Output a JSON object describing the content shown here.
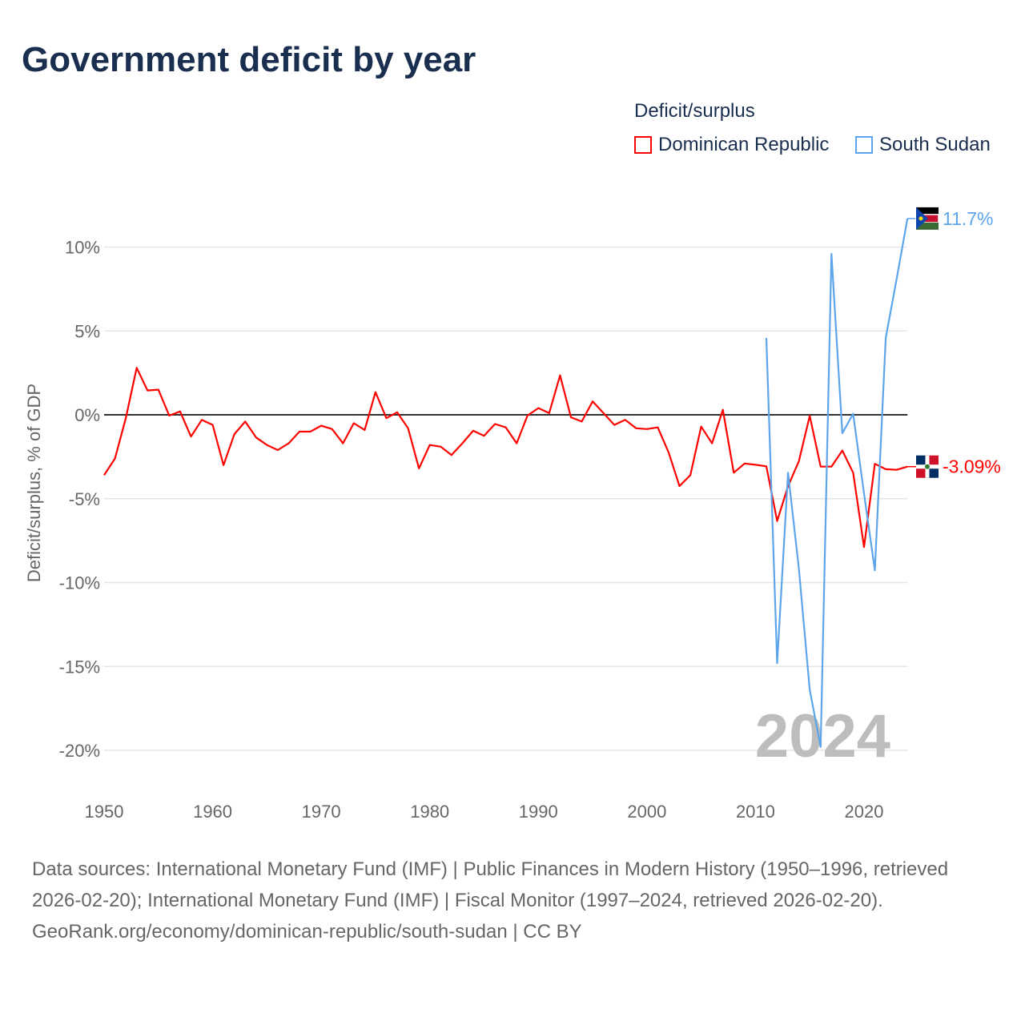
{
  "title": "Government deficit by year",
  "legend_title": "Deficit/surplus",
  "footer": {
    "sources": "Data sources: International Monetary Fund (IMF) | Public Finances in Modern History (1950–1996, retrieved 2026-02-20); International Monetary Fund (IMF) | Fiscal Monitor (1997–2024, retrieved 2026-02-20).",
    "credit": "GeoRank.org/economy/dominican-republic/south-sudan | CC BY"
  },
  "chart_data": {
    "type": "line",
    "title": "Government deficit by year",
    "xlabel": "",
    "ylabel": "Deficit/surplus, % of GDP",
    "xlim": [
      1950,
      2024
    ],
    "ylim": [
      -20,
      11.7
    ],
    "x_ticks": [
      1950,
      1960,
      1970,
      1980,
      1990,
      2000,
      2010,
      2020
    ],
    "x_tick_labels": [
      "1950",
      "1960",
      "1970",
      "1980",
      "1990",
      "2000",
      "2010",
      "2020"
    ],
    "y_ticks": [
      10,
      5,
      0,
      -5,
      -10,
      -15,
      -20
    ],
    "y_tick_labels": [
      "10%",
      "5%",
      "0%",
      "-5%",
      "-10%",
      "-15%",
      "-20%"
    ],
    "grid": true,
    "legend_position": "top-right",
    "year_watermark": "2024",
    "series": [
      {
        "name": "Dominican Republic",
        "color": "#ff0000",
        "end_label": "-3.09%",
        "start_year": 1950,
        "values": [
          -3.6,
          -2.6,
          -0.2,
          2.8,
          1.45,
          1.5,
          -0.05,
          0.2,
          -1.3,
          -0.3,
          -0.6,
          -3.0,
          -1.15,
          -0.4,
          -1.35,
          -1.8,
          -2.1,
          -1.7,
          -1.0,
          -1.0,
          -0.65,
          -0.85,
          -1.7,
          -0.5,
          -0.9,
          1.35,
          -0.2,
          0.15,
          -0.8,
          -3.2,
          -1.8,
          -1.9,
          -2.4,
          -1.7,
          -0.95,
          -1.25,
          -0.55,
          -0.75,
          -1.7,
          -0.05,
          0.4,
          0.1,
          2.35,
          -0.15,
          -0.4,
          0.8,
          0.1,
          -0.6,
          -0.3,
          -0.8,
          -0.85,
          -0.75,
          -2.25,
          -4.25,
          -3.6,
          -0.7,
          -1.7,
          0.3,
          -3.45,
          -2.9,
          -2.98,
          -3.07,
          -6.33,
          -4.26,
          -2.77,
          -0.06,
          -3.09,
          -3.09,
          -2.13,
          -3.45,
          -7.88,
          -2.92,
          -3.24,
          -3.28,
          -3.09
        ]
      },
      {
        "name": "South Sudan",
        "color": "#5da5ea",
        "end_label": "11.7%",
        "start_year": 2011,
        "values": [
          4.58,
          -14.8,
          -3.45,
          -9.16,
          -16.4,
          -19.8,
          9.59,
          -1.1,
          0.06,
          -4.7,
          -9.27,
          4.58,
          8.1,
          11.7
        ]
      }
    ]
  }
}
